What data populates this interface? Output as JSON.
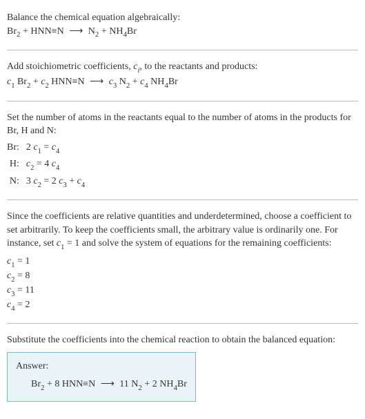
{
  "intro": {
    "line1": "Balance the chemical equation algebraically:",
    "eq_pre": "Br",
    "eq_br_sub": "2",
    "eq_mid1": " + HNN≡N ",
    "arrow": "⟶",
    "eq_mid2": " N",
    "eq_n_sub": "2",
    "eq_mid3": " + NH",
    "eq_nh_sub": "4",
    "eq_end": "Br"
  },
  "stoich": {
    "line1_a": "Add stoichiometric coefficients, ",
    "ci_c": "c",
    "ci_i": "i",
    "line1_b": ", to the reactants and products:",
    "c1": "c",
    "s1": "1",
    "sp1": " Br",
    "brsub": "2",
    "plus1": " + ",
    "c2": "c",
    "s2": "2",
    "sp2": " HNN≡N ",
    "arrow": "⟶",
    "sp3": " ",
    "c3": "c",
    "s3": "3",
    "sp4": " N",
    "nsub": "2",
    "plus2": " + ",
    "c4": "c",
    "s4": "4",
    "sp5": " NH",
    "nhsub": "4",
    "sp6": "Br"
  },
  "atoms": {
    "intro": "Set the number of atoms in the reactants equal to the number of atoms in the products for Br, H and N:",
    "rows": [
      {
        "label": "Br:",
        "pre": "2 ",
        "c1": "c",
        "s1": "1",
        "mid": " = ",
        "c2": "c",
        "s2": "4",
        "post": ""
      },
      {
        "label": "H:",
        "pre": "",
        "c1": "c",
        "s1": "2",
        "mid": " = 4 ",
        "c2": "c",
        "s2": "4",
        "post": ""
      },
      {
        "label": "N:",
        "pre": "3 ",
        "c1": "c",
        "s1": "2",
        "mid": " = 2 ",
        "c2": "c",
        "s2": "3",
        "post_plus": " + ",
        "c3": "c",
        "s3": "4"
      }
    ]
  },
  "underdet": {
    "p1a": "Since the coefficients are relative quantities and underdetermined, choose a coefficient to set arbitrarily. To keep the coefficients small, the arbitrary value is ordinarily one. For instance, set ",
    "c": "c",
    "s": "1",
    "p1b": " = 1 and solve the system of equations for the remaining coefficients:",
    "lines": [
      {
        "c": "c",
        "s": "1",
        "eq": " = 1"
      },
      {
        "c": "c",
        "s": "2",
        "eq": " = 8"
      },
      {
        "c": "c",
        "s": "3",
        "eq": " = 11"
      },
      {
        "c": "c",
        "s": "4",
        "eq": " = 2"
      }
    ]
  },
  "final": {
    "intro": "Substitute the coefficients into the chemical reaction to obtain the balanced equation:",
    "answer_label": "Answer:",
    "eq_a": "Br",
    "brsub": "2",
    "eq_b": " + 8 HNN≡N ",
    "arrow": "⟶",
    "eq_c": " 11 N",
    "nsub": "2",
    "eq_d": " + 2 NH",
    "nhsub": "4",
    "eq_e": "Br"
  }
}
